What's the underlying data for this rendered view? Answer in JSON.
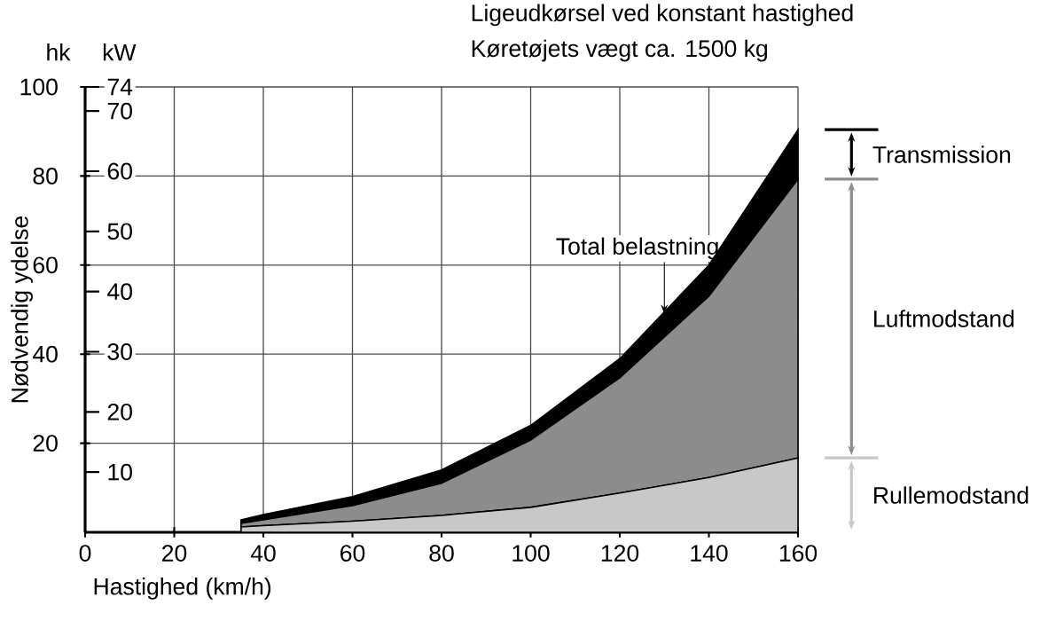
{
  "chart_data": {
    "type": "area",
    "stacked": true,
    "title": "Ligeudkørsel ved konstant hastighed",
    "subtitle": "Køretøjets vægt ca. 1500 kg",
    "xlabel": "Hastighed (km/h)",
    "ylabel": "Nødvendig ydelse",
    "y2label": "kW",
    "x": [
      35,
      40,
      60,
      80,
      100,
      120,
      140,
      160
    ],
    "series": [
      {
        "name": "Rullemodstand",
        "color": "#c8c8c8",
        "values": [
          1.2,
          1.5,
          2.5,
          3.8,
          5.6,
          8.8,
          12.3,
          16.7
        ]
      },
      {
        "name": "Luftmodstand",
        "color": "#8c8c8c",
        "values": [
          0.8,
          1.3,
          3.5,
          7.2,
          15.1,
          25.9,
          40.7,
          62.6
        ]
      },
      {
        "name": "Transmission",
        "color": "#000000",
        "values": [
          0.8,
          1.2,
          2,
          3,
          3.3,
          4.3,
          7,
          11.1
        ]
      }
    ],
    "xlim": [
      0,
      160
    ],
    "xticks": [
      0,
      20,
      40,
      60,
      80,
      100,
      120,
      140,
      160
    ],
    "ylim": [
      0,
      100
    ],
    "yticks": [
      20,
      40,
      60,
      80,
      100
    ],
    "y2lim": [
      0,
      74
    ],
    "y2ticks": [
      10,
      20,
      30,
      40,
      50,
      60,
      70,
      74
    ],
    "grid": true,
    "legend": "right",
    "annotations": [
      "hk",
      {
        "text": "Total belastning",
        "x": 130,
        "y": 49
      }
    ]
  }
}
